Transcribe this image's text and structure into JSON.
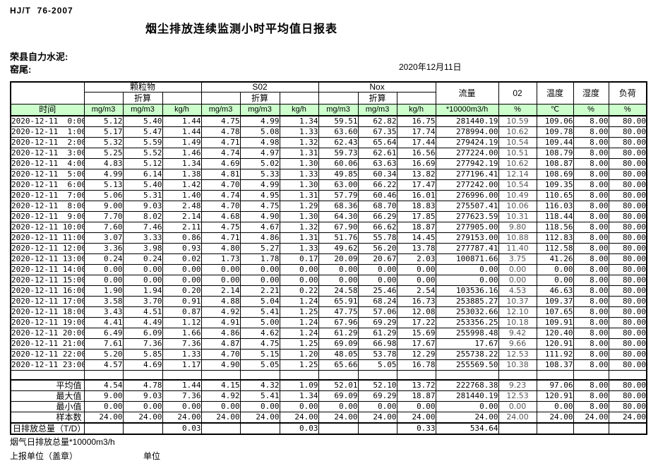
{
  "page": {
    "doc_code": "HJ/T  76-2007",
    "title": "烟尘排放连续监测小时平均值日报表",
    "company": "荣县自力水泥:",
    "kiln": "窑尾:",
    "date": "2020年12月11日",
    "footer_flow_total": "烟气日排放总量*10000m3/h",
    "footer_report_unit": "上报单位（盖章）",
    "footer_unit": "单位"
  },
  "colors": {
    "header_green": "#ccffcc",
    "border": "#000000"
  },
  "table": {
    "time_header": "时间",
    "groups": [
      {
        "label": "颗粒物",
        "sub": "折算"
      },
      {
        "label": "S02",
        "sub": "折算"
      },
      {
        "label": "Nox",
        "sub": "折算"
      }
    ],
    "group_units": [
      "mg/m3",
      "mg/m3",
      "kg/h"
    ],
    "singles": [
      {
        "label": "流量",
        "unit": "*10000m3/h"
      },
      {
        "label": "02",
        "unit": "%"
      },
      {
        "label": "温度",
        "unit": "℃"
      },
      {
        "label": "湿度",
        "unit": "%"
      },
      {
        "label": "负荷",
        "unit": "%"
      }
    ],
    "rows": [
      {
        "time": "2020-12-11  0:00",
        "values": [
          "5.12",
          "5.40",
          "1.44",
          "4.75",
          "4.99",
          "1.34",
          "59.51",
          "62.82",
          "16.75",
          "281440.19",
          "10.59",
          "109.06",
          "8.00",
          "80.00"
        ]
      },
      {
        "time": "2020-12-11  1:00",
        "values": [
          "5.17",
          "5.47",
          "1.44",
          "4.78",
          "5.08",
          "1.33",
          "63.60",
          "67.35",
          "17.74",
          "278994.00",
          "10.62",
          "109.78",
          "8.00",
          "80.00"
        ]
      },
      {
        "time": "2020-12-11  2:00",
        "values": [
          "5.32",
          "5.59",
          "1.49",
          "4.71",
          "4.98",
          "1.32",
          "62.43",
          "65.64",
          "17.44",
          "279424.19",
          "10.54",
          "109.44",
          "8.00",
          "80.00"
        ]
      },
      {
        "time": "2020-12-11  3:00",
        "values": [
          "5.25",
          "5.52",
          "1.46",
          "4.74",
          "4.97",
          "1.31",
          "59.73",
          "62.61",
          "16.56",
          "277224.00",
          "10.51",
          "108.79",
          "8.00",
          "80.00"
        ]
      },
      {
        "time": "2020-12-11  4:00",
        "values": [
          "4.83",
          "5.12",
          "1.34",
          "4.69",
          "5.02",
          "1.30",
          "60.06",
          "63.63",
          "16.69",
          "277942.19",
          "10.62",
          "108.87",
          "8.00",
          "80.00"
        ]
      },
      {
        "time": "2020-12-11  5:00",
        "values": [
          "4.99",
          "6.14",
          "1.38",
          "4.81",
          "5.33",
          "1.33",
          "49.85",
          "60.34",
          "13.82",
          "277196.41",
          "12.14",
          "108.69",
          "8.00",
          "80.00"
        ]
      },
      {
        "time": "2020-12-11  6:00",
        "values": [
          "5.13",
          "5.40",
          "1.42",
          "4.70",
          "4.99",
          "1.30",
          "63.00",
          "66.22",
          "17.47",
          "277242.00",
          "10.54",
          "109.35",
          "8.00",
          "80.00"
        ]
      },
      {
        "time": "2020-12-11  7:00",
        "values": [
          "5.06",
          "5.31",
          "1.40",
          "4.74",
          "4.95",
          "1.31",
          "57.79",
          "60.46",
          "16.01",
          "276996.00",
          "10.49",
          "110.65",
          "8.00",
          "80.00"
        ]
      },
      {
        "time": "2020-12-11  8:00",
        "values": [
          "9.00",
          "9.03",
          "2.48",
          "4.70",
          "4.75",
          "1.29",
          "68.36",
          "68.70",
          "18.83",
          "275507.41",
          "10.06",
          "116.03",
          "8.00",
          "80.00"
        ]
      },
      {
        "time": "2020-12-11  9:00",
        "values": [
          "7.70",
          "8.02",
          "2.14",
          "4.68",
          "4.90",
          "1.30",
          "64.30",
          "66.29",
          "17.85",
          "277623.59",
          "10.31",
          "118.44",
          "8.00",
          "80.00"
        ]
      },
      {
        "time": "2020-12-11 10:00",
        "values": [
          "7.60",
          "7.46",
          "2.11",
          "4.75",
          "4.67",
          "1.32",
          "67.90",
          "66.62",
          "18.87",
          "277905.00",
          "9.80",
          "118.56",
          "8.00",
          "80.00"
        ]
      },
      {
        "time": "2020-12-11 11:00",
        "values": [
          "3.07",
          "3.33",
          "0.86",
          "4.71",
          "4.86",
          "1.31",
          "51.76",
          "55.78",
          "14.45",
          "279153.00",
          "10.88",
          "112.83",
          "8.00",
          "80.00"
        ]
      },
      {
        "time": "2020-12-11 12:00",
        "values": [
          "3.36",
          "3.98",
          "0.93",
          "4.80",
          "5.27",
          "1.33",
          "49.62",
          "56.20",
          "13.78",
          "277787.41",
          "11.40",
          "112.58",
          "8.00",
          "80.00"
        ]
      },
      {
        "time": "2020-12-11 13:00",
        "values": [
          "0.24",
          "0.24",
          "0.02",
          "1.73",
          "1.78",
          "0.17",
          "20.09",
          "20.67",
          "2.03",
          "100871.66",
          "3.75",
          "41.26",
          "8.00",
          "80.00"
        ]
      },
      {
        "time": "2020-12-11 14:00",
        "values": [
          "0.00",
          "0.00",
          "0.00",
          "0.00",
          "0.00",
          "0.00",
          "0.00",
          "0.00",
          "0.00",
          "0.00",
          "0.00",
          "0.00",
          "8.00",
          "80.00"
        ]
      },
      {
        "time": "2020-12-11 15:00",
        "values": [
          "0.00",
          "0.00",
          "0.00",
          "0.00",
          "0.00",
          "0.00",
          "0.00",
          "0.00",
          "0.00",
          "0.00",
          "0.00",
          "0.00",
          "8.00",
          "80.00"
        ]
      },
      {
        "time": "2020-12-11 16:00",
        "values": [
          "1.90",
          "1.94",
          "0.20",
          "2.14",
          "2.21",
          "0.22",
          "24.58",
          "25.46",
          "2.54",
          "103536.16",
          "4.53",
          "46.63",
          "8.00",
          "80.00"
        ]
      },
      {
        "time": "2020-12-11 17:00",
        "values": [
          "3.58",
          "3.70",
          "0.91",
          "4.88",
          "5.04",
          "1.24",
          "65.91",
          "68.24",
          "16.73",
          "253885.27",
          "10.37",
          "109.37",
          "8.00",
          "80.00"
        ]
      },
      {
        "time": "2020-12-11 18:00",
        "values": [
          "3.43",
          "4.51",
          "0.87",
          "4.92",
          "5.41",
          "1.25",
          "47.75",
          "57.06",
          "12.08",
          "253032.66",
          "12.10",
          "107.65",
          "8.00",
          "80.00"
        ]
      },
      {
        "time": "2020-12-11 19:00",
        "values": [
          "4.41",
          "4.49",
          "1.12",
          "4.91",
          "5.00",
          "1.24",
          "67.96",
          "69.29",
          "17.22",
          "253356.25",
          "10.18",
          "109.91",
          "8.00",
          "80.00"
        ]
      },
      {
        "time": "2020-12-11 20:00",
        "values": [
          "6.49",
          "6.09",
          "1.66",
          "4.86",
          "4.62",
          "1.24",
          "61.29",
          "61.29",
          "15.69",
          "255998.48",
          "9.42",
          "120.40",
          "8.00",
          "80.00"
        ]
      },
      {
        "time": "2020-12-11 21:00",
        "values": [
          "7.61",
          "7.36",
          "7.36",
          "4.87",
          "4.75",
          "1.25",
          "69.09",
          "66.98",
          "17.67",
          "17.67",
          "9.66",
          "120.91",
          "8.00",
          "80.00"
        ]
      },
      {
        "time": "2020-12-11 22:00",
        "values": [
          "5.20",
          "5.85",
          "1.33",
          "4.70",
          "5.15",
          "1.20",
          "48.05",
          "53.78",
          "12.29",
          "255738.22",
          "12.53",
          "111.92",
          "8.00",
          "80.00"
        ]
      },
      {
        "time": "2020-12-11 23:00",
        "values": [
          "4.57",
          "4.69",
          "1.17",
          "4.90",
          "5.05",
          "1.25",
          "65.66",
          "5.05",
          "16.78",
          "255569.50",
          "10.38",
          "108.37",
          "8.00",
          "80.00"
        ]
      }
    ],
    "summary": [
      {
        "label": "平均值",
        "total": false,
        "values": [
          "4.54",
          "4.78",
          "1.44",
          "4.15",
          "4.32",
          "1.09",
          "52.01",
          "52.10",
          "13.72",
          "222768.38",
          "9.23",
          "97.06",
          "8.00",
          "80.00"
        ]
      },
      {
        "label": "最大值",
        "total": false,
        "values": [
          "9.00",
          "9.03",
          "7.36",
          "4.92",
          "5.41",
          "1.34",
          "69.09",
          "69.29",
          "18.87",
          "281440.19",
          "12.53",
          "120.91",
          "8.00",
          "80.00"
        ]
      },
      {
        "label": "最小值",
        "total": false,
        "values": [
          "0.00",
          "0.00",
          "0.00",
          "0.00",
          "0.00",
          "0.00",
          "0.00",
          "0.00",
          "0.00",
          "0.00",
          "0.00",
          "0.00",
          "8.00",
          "80.00"
        ]
      },
      {
        "label": "样本数",
        "total": false,
        "values": [
          "24.00",
          "24.00",
          "24.00",
          "24.00",
          "24.00",
          "24.00",
          "24.00",
          "24.00",
          "24.00",
          "24.00",
          "24.00",
          "24.00",
          "24.00",
          "24.00"
        ]
      },
      {
        "label": "日排放总量（T/D）",
        "total": true,
        "values": [
          "",
          "",
          "0.03",
          "",
          "",
          "0.03",
          "",
          "",
          "0.33",
          "534.64",
          "",
          "",
          "",
          ""
        ]
      }
    ]
  }
}
